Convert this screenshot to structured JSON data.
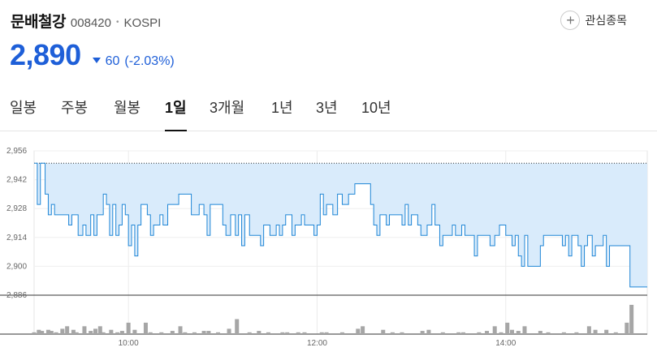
{
  "stock": {
    "name": "문배철강",
    "code": "008420",
    "separator": "•",
    "market": "KOSPI"
  },
  "favorite": {
    "icon": "plus-icon",
    "label": "관심종목"
  },
  "price": {
    "current": "2,890",
    "change": "60",
    "change_pct": "(-2.03%)",
    "direction": "down",
    "color": "#1e5fd8"
  },
  "tabs": [
    {
      "label": "일봉",
      "active": false
    },
    {
      "label": "주봉",
      "active": false
    },
    {
      "label": "월봉",
      "active": false
    },
    {
      "label": "1일",
      "active": true
    },
    {
      "label": "3개월",
      "active": false
    },
    {
      "label": "1년",
      "active": false
    },
    {
      "label": "3년",
      "active": false
    },
    {
      "label": "10년",
      "active": false
    }
  ],
  "chart_data": {
    "type": "area",
    "colors": {
      "line": "#1f86d6",
      "fill": "#d9ebfb",
      "volume": "#a6a6a6",
      "reference": "#333333"
    },
    "y_ticks": [
      "2,956",
      "2,942",
      "2,928",
      "2,914",
      "2,900",
      "2,886"
    ],
    "ylim": [
      2886,
      2956
    ],
    "xlim": [
      "09:00",
      "15:30"
    ],
    "x_ticks": [
      "10:00",
      "12:00",
      "14:00"
    ],
    "reference_price": 2950,
    "grid": true,
    "series": [
      {
        "values": [
          [
            "09:00",
            2950
          ],
          [
            "09:02",
            2930
          ],
          [
            "09:04",
            2950
          ],
          [
            "09:07",
            2935
          ],
          [
            "09:09",
            2925
          ],
          [
            "09:11",
            2930
          ],
          [
            "09:13",
            2925
          ],
          [
            "09:20",
            2925
          ],
          [
            "09:22",
            2920
          ],
          [
            "09:24",
            2925
          ],
          [
            "09:28",
            2915
          ],
          [
            "09:31",
            2920
          ],
          [
            "09:33",
            2915
          ],
          [
            "09:36",
            2925
          ],
          [
            "09:38",
            2915
          ],
          [
            "09:40",
            2925
          ],
          [
            "09:44",
            2935
          ],
          [
            "09:46",
            2930
          ],
          [
            "09:48",
            2915
          ],
          [
            "09:50",
            2930
          ],
          [
            "09:52",
            2915
          ],
          [
            "09:54",
            2920
          ],
          [
            "09:56",
            2930
          ],
          [
            "09:58",
            2925
          ],
          [
            "10:00",
            2910
          ],
          [
            "10:02",
            2920
          ],
          [
            "10:04",
            2905
          ],
          [
            "10:06",
            2920
          ],
          [
            "10:08",
            2930
          ],
          [
            "10:12",
            2925
          ],
          [
            "10:14",
            2915
          ],
          [
            "10:16",
            2920
          ],
          [
            "10:20",
            2925
          ],
          [
            "10:22",
            2920
          ],
          [
            "10:25",
            2930
          ],
          [
            "10:30",
            2930
          ],
          [
            "10:32",
            2935
          ],
          [
            "10:38",
            2935
          ],
          [
            "10:40",
            2925
          ],
          [
            "10:45",
            2930
          ],
          [
            "10:48",
            2925
          ],
          [
            "10:50",
            2915
          ],
          [
            "10:52",
            2930
          ],
          [
            "10:58",
            2930
          ],
          [
            "11:00",
            2920
          ],
          [
            "11:02",
            2915
          ],
          [
            "11:05",
            2925
          ],
          [
            "11:08",
            2915
          ],
          [
            "11:10",
            2925
          ],
          [
            "11:12",
            2910
          ],
          [
            "11:14",
            2925
          ],
          [
            "11:17",
            2915
          ],
          [
            "11:20",
            2915
          ],
          [
            "11:24",
            2910
          ],
          [
            "11:26",
            2920
          ],
          [
            "11:30",
            2915
          ],
          [
            "11:34",
            2920
          ],
          [
            "11:36",
            2915
          ],
          [
            "11:38",
            2920
          ],
          [
            "11:40",
            2925
          ],
          [
            "11:44",
            2915
          ],
          [
            "11:46",
            2920
          ],
          [
            "11:50",
            2925
          ],
          [
            "11:52",
            2920
          ],
          [
            "11:56",
            2920
          ],
          [
            "11:58",
            2915
          ],
          [
            "12:00",
            2920
          ],
          [
            "12:02",
            2935
          ],
          [
            "12:04",
            2925
          ],
          [
            "12:06",
            2930
          ],
          [
            "12:10",
            2925
          ],
          [
            "12:13",
            2935
          ],
          [
            "12:16",
            2930
          ],
          [
            "12:20",
            2935
          ],
          [
            "12:24",
            2940
          ],
          [
            "12:32",
            2940
          ],
          [
            "12:34",
            2930
          ],
          [
            "12:36",
            2920
          ],
          [
            "12:38",
            2915
          ],
          [
            "12:40",
            2925
          ],
          [
            "12:44",
            2920
          ],
          [
            "12:46",
            2925
          ],
          [
            "12:54",
            2920
          ],
          [
            "12:56",
            2930
          ],
          [
            "12:58",
            2920
          ],
          [
            "13:00",
            2925
          ],
          [
            "13:04",
            2920
          ],
          [
            "13:06",
            2915
          ],
          [
            "13:10",
            2920
          ],
          [
            "13:13",
            2930
          ],
          [
            "13:15",
            2920
          ],
          [
            "13:18",
            2910
          ],
          [
            "13:20",
            2915
          ],
          [
            "13:26",
            2920
          ],
          [
            "13:28",
            2915
          ],
          [
            "13:32",
            2920
          ],
          [
            "13:34",
            2915
          ],
          [
            "13:37",
            2915
          ],
          [
            "13:40",
            2905
          ],
          [
            "13:42",
            2915
          ],
          [
            "13:48",
            2915
          ],
          [
            "13:50",
            2910
          ],
          [
            "13:53",
            2915
          ],
          [
            "13:56",
            2920
          ],
          [
            "14:00",
            2915
          ],
          [
            "14:04",
            2910
          ],
          [
            "14:06",
            2915
          ],
          [
            "14:08",
            2905
          ],
          [
            "14:10",
            2900
          ],
          [
            "14:12",
            2915
          ],
          [
            "14:14",
            2900
          ],
          [
            "14:20",
            2900
          ],
          [
            "14:22",
            2910
          ],
          [
            "14:24",
            2915
          ],
          [
            "14:30",
            2915
          ],
          [
            "14:36",
            2910
          ],
          [
            "14:38",
            2915
          ],
          [
            "14:40",
            2905
          ],
          [
            "14:42",
            2915
          ],
          [
            "14:46",
            2910
          ],
          [
            "14:48",
            2900
          ],
          [
            "14:50",
            2910
          ],
          [
            "14:52",
            2915
          ],
          [
            "14:55",
            2905
          ],
          [
            "14:57",
            2910
          ],
          [
            "15:00",
            2910
          ],
          [
            "15:02",
            2915
          ],
          [
            "15:04",
            2900
          ],
          [
            "15:06",
            2910
          ],
          [
            "15:18",
            2910
          ],
          [
            "15:19",
            2890
          ],
          [
            "15:30",
            2890
          ]
        ]
      }
    ],
    "volume": [
      [
        "09:00",
        0.05
      ],
      [
        "09:03",
        0.12
      ],
      [
        "09:05",
        0.09
      ],
      [
        "09:09",
        0.12
      ],
      [
        "09:11",
        0.09
      ],
      [
        "09:14",
        0.05
      ],
      [
        "09:18",
        0.15
      ],
      [
        "09:21",
        0.22
      ],
      [
        "09:25",
        0.12
      ],
      [
        "09:27",
        0.05
      ],
      [
        "09:32",
        0.22
      ],
      [
        "09:36",
        0.09
      ],
      [
        "09:39",
        0.15
      ],
      [
        "09:42",
        0.22
      ],
      [
        "09:44",
        0.05
      ],
      [
        "09:49",
        0.12
      ],
      [
        "09:53",
        0.05
      ],
      [
        "09:56",
        0.09
      ],
      [
        "10:00",
        0.32
      ],
      [
        "10:04",
        0.12
      ],
      [
        "10:11",
        0.32
      ],
      [
        "10:14",
        0.05
      ],
      [
        "10:21",
        0.05
      ],
      [
        "10:28",
        0.09
      ],
      [
        "10:33",
        0.22
      ],
      [
        "10:36",
        0.05
      ],
      [
        "10:42",
        0.05
      ],
      [
        "10:48",
        0.09
      ],
      [
        "10:51",
        0.09
      ],
      [
        "10:57",
        0.05
      ],
      [
        "11:04",
        0.15
      ],
      [
        "11:09",
        0.42
      ],
      [
        "11:17",
        0.05
      ],
      [
        "11:23",
        0.09
      ],
      [
        "11:29",
        0.05
      ],
      [
        "11:38",
        0.05
      ],
      [
        "11:41",
        0.05
      ],
      [
        "11:48",
        0.05
      ],
      [
        "11:52",
        0.05
      ],
      [
        "12:03",
        0.05
      ],
      [
        "12:06",
        0.05
      ],
      [
        "12:16",
        0.05
      ],
      [
        "12:26",
        0.15
      ],
      [
        "12:29",
        0.22
      ],
      [
        "12:42",
        0.12
      ],
      [
        "12:48",
        0.05
      ],
      [
        "12:54",
        0.05
      ],
      [
        "13:07",
        0.09
      ],
      [
        "13:11",
        0.12
      ],
      [
        "13:20",
        0.05
      ],
      [
        "13:30",
        0.05
      ],
      [
        "13:33",
        0.05
      ],
      [
        "13:43",
        0.05
      ],
      [
        "13:48",
        0.09
      ],
      [
        "13:53",
        0.22
      ],
      [
        "13:57",
        0.05
      ],
      [
        "14:01",
        0.32
      ],
      [
        "14:04",
        0.12
      ],
      [
        "14:08",
        0.09
      ],
      [
        "14:12",
        0.22
      ],
      [
        "14:22",
        0.09
      ],
      [
        "14:27",
        0.05
      ],
      [
        "14:37",
        0.05
      ],
      [
        "14:45",
        0.05
      ],
      [
        "14:53",
        0.22
      ],
      [
        "14:57",
        0.12
      ],
      [
        "15:04",
        0.12
      ],
      [
        "15:10",
        0.05
      ],
      [
        "15:17",
        0.32
      ],
      [
        "15:20",
        0.82
      ]
    ]
  }
}
